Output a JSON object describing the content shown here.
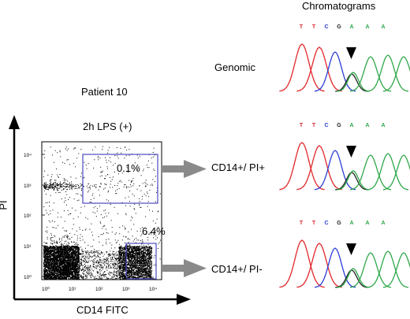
{
  "figure": {
    "patient_label": "Patient 10",
    "condition_label": "2h LPS (+)",
    "y_axis_label": "PI",
    "x_axis_label": "CD14 FITC",
    "gates": [
      {
        "percent": "0.1%",
        "population": "CD14+/ PI+"
      },
      {
        "percent": "6.4%",
        "population": "CD14+/ PI-"
      }
    ],
    "y_ticks": [
      "10⁴",
      "10³",
      "10²",
      "10¹",
      "10⁰"
    ],
    "x_ticks": [
      "10⁰",
      "10¹",
      "10²",
      "10³",
      "10⁴"
    ]
  },
  "chromatograms": {
    "header": "Chromatograms",
    "panels": [
      {
        "label": "Genomic",
        "bases": [
          "T",
          "T",
          "C",
          "G",
          "A",
          "A",
          "A"
        ]
      },
      {
        "label": "",
        "bases": [
          "T",
          "T",
          "C",
          "G",
          "A",
          "A",
          "A"
        ]
      },
      {
        "label": "",
        "bases": [
          "T",
          "T",
          "C",
          "G",
          "A",
          "A",
          "A"
        ]
      }
    ]
  },
  "colors": {
    "T": "#e0282b",
    "C": "#2b3ed6",
    "G": "#222222",
    "A": "#2ea84a",
    "gate": "#4a4ac0",
    "arrow": "#8a8a8a",
    "dots": "#000000"
  }
}
